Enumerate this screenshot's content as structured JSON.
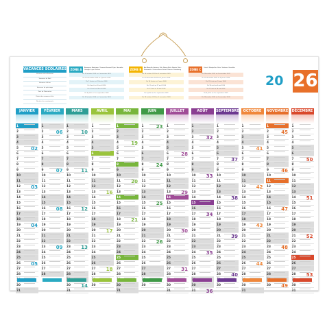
{
  "year": {
    "prefix": "20",
    "suffix": "26"
  },
  "vacances": {
    "title": "VACANCES SCOLAIRES",
    "periods": [
      "Vacances de la Toussaint",
      "Vacances de Noël",
      "Vacances d'hiver",
      "Vacances de printemps",
      "Pont de l'Ascension",
      "Début des vacances d'été",
      "Rentrée des enseignants"
    ]
  },
  "zones": [
    {
      "label": "ZONE A",
      "note": "Besançon, Bordeaux, Clermont-Ferrand, Dijon, Grenoble, Limoges, Lyon, Poitiers",
      "lines": [
        "Du 18 octobre 2025 au 3 novembre 2025",
        "Du 20 décembre 2025 au 5 janvier 2026",
        "Du 7 février au 23 février 2026",
        "Du 4 avril au 20 avril 2026",
        "Du 13 mai au 18 mai 2026",
        "Du 4 juillet au 1er septembre 2026",
        "Du 18 octobre 2026 au 2 novembre 2026"
      ]
    },
    {
      "label": "ZONE B",
      "note": "Aix-Marseille, Amiens, Lille, Nancy-Metz, Nantes, Nice, Normandie, Orléans-Tours, Reims, Rennes, Strasbourg",
      "lines": [
        "Du 18 octobre 2025 au 3 novembre 2025",
        "Du 20 décembre 2025 au 5 janvier 2026",
        "Du 14 février au 2 mars 2026",
        "Du 11 avril au 27 avril 2026",
        "Du 13 mai au 18 mai 2026",
        "Du 4 juillet au 1er septembre 2026",
        "Du 18 octobre 2026 au 2 novembre 2026"
      ]
    },
    {
      "label": "ZONE C",
      "note": "Créteil, Montpellier, Paris, Toulouse, Versailles",
      "lines": [
        "Du 18 octobre 2025 au 3 novembre 2025",
        "Du 20 décembre 2025 au 5 janvier 2026",
        "Du 21 février au 9 mars 2026",
        "Du 18 avril au 4 mai 2026",
        "Du 13 mai au 18 mai 2026",
        "Du 4 juillet au 1er septembre 2026",
        "Du 18 octobre 2026 au 2 novembre 2026"
      ]
    }
  ],
  "months": [
    {
      "name": "JANVIER",
      "color": "#1f9ec6",
      "days": 31,
      "start": 3
    },
    {
      "name": "FÉVRIER",
      "color": "#2aaac2",
      "days": 28,
      "start": 6
    },
    {
      "name": "MARS",
      "color": "#2e9e96",
      "days": 31,
      "start": 6
    },
    {
      "name": "AVRIL",
      "color": "#9ac43b",
      "days": 30,
      "start": 2
    },
    {
      "name": "MAI",
      "color": "#78b63c",
      "days": 31,
      "start": 4
    },
    {
      "name": "JUIN",
      "color": "#3f9a47",
      "days": 30,
      "start": 0
    },
    {
      "name": "JUILLET",
      "color": "#a04c97",
      "days": 31,
      "start": 2
    },
    {
      "name": "AOÛT",
      "color": "#8a3e92",
      "days": 31,
      "start": 5
    },
    {
      "name": "SEPTEMBRE",
      "color": "#6b3890",
      "days": 30,
      "start": 1
    },
    {
      "name": "OCTOBRE",
      "color": "#f0873a",
      "days": 31,
      "start": 3
    },
    {
      "name": "NOVEMBRE",
      "color": "#e66f2a",
      "days": 30,
      "start": 6
    },
    {
      "name": "DÉCEMBRE",
      "color": "#d9482b",
      "days": 31,
      "start": 1
    }
  ],
  "weekday_letters": [
    "L",
    "M",
    "M",
    "J",
    "V",
    "S",
    "D"
  ],
  "holidays": [
    "1-1",
    "4-6",
    "5-1",
    "5-8",
    "5-14",
    "5-25",
    "7-14",
    "8-15",
    "11-1",
    "11-11",
    "12-25"
  ],
  "palette": {
    "sheet_border": "#e5e5e5",
    "string": "#c9a15a",
    "weekend": "#dcdcdc"
  }
}
